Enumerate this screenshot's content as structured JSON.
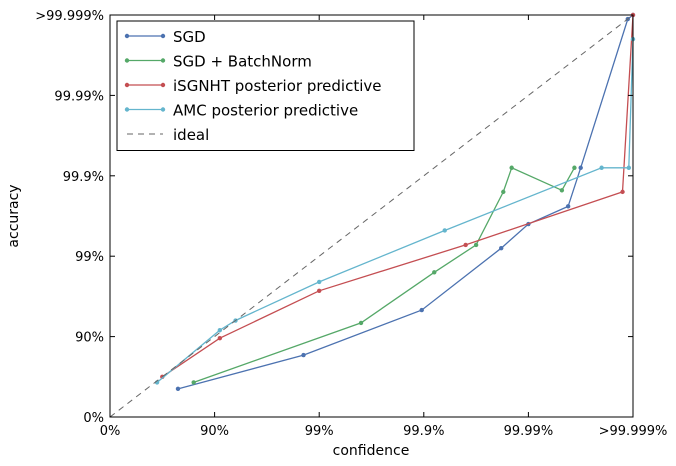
{
  "chart_data": {
    "type": "line",
    "xlabel": "confidence",
    "ylabel": "accuracy",
    "scale": "logit (1 - p), decades",
    "xlim": [
      "0%",
      ">99.999%"
    ],
    "ylim": [
      "0%",
      ">99.999%"
    ],
    "x_ticks": [
      "0%",
      "90%",
      "99%",
      "99.9%",
      "99.99%",
      ">99.999%"
    ],
    "y_ticks": [
      "0%",
      "90%",
      "99%",
      "99.9%",
      "99.99%",
      ">99.999%"
    ],
    "grid": false,
    "legend_position": "top-left",
    "series": [
      {
        "name": "SGD",
        "color": "#4c72b0",
        "x_decades": [
          0.65,
          1.85,
          2.98,
          3.74,
          4.0,
          4.38,
          4.5,
          4.95,
          5.0
        ],
        "y_decades": [
          0.35,
          0.77,
          1.33,
          2.1,
          2.4,
          2.62,
          3.1,
          4.95,
          5.0
        ]
      },
      {
        "name": "SGD + BatchNorm",
        "color": "#55a868",
        "x_decades": [
          0.8,
          2.4,
          3.1,
          3.5,
          3.76,
          3.84,
          4.32,
          4.44
        ],
        "y_decades": [
          0.43,
          1.17,
          1.8,
          2.14,
          2.8,
          3.1,
          2.82,
          3.1
        ]
      },
      {
        "name": "iSGNHT posterior predictive",
        "color": "#c44e52",
        "x_decades": [
          0.5,
          1.05,
          2.0,
          3.4,
          4.9,
          5.0
        ],
        "y_decades": [
          0.5,
          0.98,
          1.57,
          2.14,
          2.8,
          5.0
        ]
      },
      {
        "name": "AMC posterior predictive",
        "color": "#64b5cd",
        "x_decades": [
          0.45,
          1.05,
          1.2,
          2.0,
          3.2,
          4.7,
          4.96,
          5.0
        ],
        "y_decades": [
          0.43,
          1.08,
          1.2,
          1.68,
          2.32,
          3.1,
          3.1,
          4.7
        ]
      },
      {
        "name": "ideal",
        "color": "#666666",
        "dashed": true,
        "x_decades": [
          0,
          5
        ],
        "y_decades": [
          0,
          5
        ]
      }
    ]
  }
}
